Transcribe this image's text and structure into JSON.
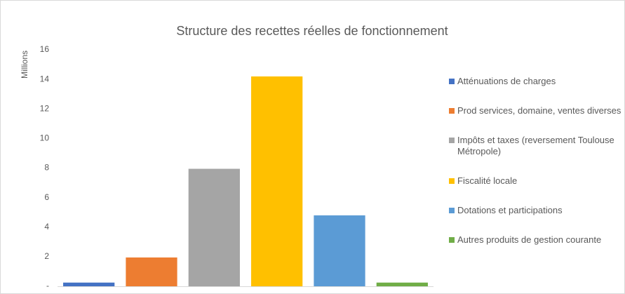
{
  "chart_data": {
    "type": "bar",
    "title": "Structure des recettes réelles de fonctionnement",
    "y_label": "Millions",
    "categories": [
      "Atténuations de charges",
      "Prod services, domaine, ventes diverses",
      "Impôts et taxes (reversement Toulouse Métropole)",
      "Fiscalité locale",
      "Dotations et participations",
      "Autres produits de gestion courante"
    ],
    "values": [
      0.25,
      1.95,
      7.95,
      14.2,
      4.8,
      0.25
    ],
    "colors": [
      "#4472c4",
      "#ed7d31",
      "#a5a5a5",
      "#ffc000",
      "#5b9bd5",
      "#70ad47"
    ],
    "ylim": [
      0,
      16
    ],
    "yticks": [
      {
        "value": 0,
        "label": "-"
      },
      2,
      4,
      6,
      8,
      10,
      12,
      14,
      16
    ],
    "grid": false,
    "legend": "right"
  }
}
